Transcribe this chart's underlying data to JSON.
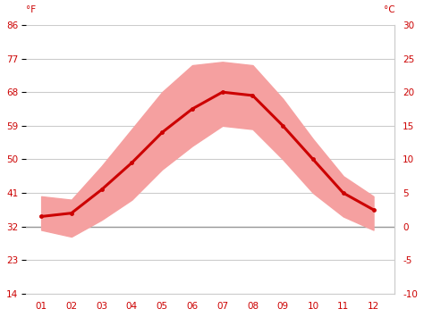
{
  "months": [
    1,
    2,
    3,
    4,
    5,
    6,
    7,
    8,
    9,
    10,
    11,
    12
  ],
  "month_labels": [
    "01",
    "02",
    "03",
    "04",
    "05",
    "06",
    "07",
    "08",
    "09",
    "10",
    "11",
    "12"
  ],
  "mean_temp_c": [
    1.5,
    2.0,
    5.5,
    9.5,
    14.0,
    17.5,
    20.0,
    19.5,
    15.0,
    10.0,
    5.0,
    2.5
  ],
  "max_temp_c": [
    4.5,
    4.0,
    9.0,
    14.5,
    20.0,
    24.0,
    24.5,
    24.0,
    19.0,
    13.0,
    7.5,
    4.5
  ],
  "min_temp_c": [
    -0.5,
    -1.5,
    1.0,
    4.0,
    8.5,
    12.0,
    15.0,
    14.5,
    10.0,
    5.0,
    1.5,
    -0.5
  ],
  "line_color": "#cc0000",
  "band_color": "#f5a0a0",
  "zero_line_color": "#999999",
  "grid_color": "#cccccc",
  "tick_color": "#cc0000",
  "spine_color": "#cccccc",
  "background_color": "#ffffff",
  "ylim_c": [
    -10,
    30
  ],
  "yticks_c": [
    -10,
    -5,
    0,
    5,
    10,
    15,
    20,
    25,
    30
  ],
  "yticks_f": [
    14,
    23,
    32,
    41,
    50,
    59,
    68,
    77,
    86
  ],
  "label_f": "°F",
  "label_c": "°C",
  "figsize": [
    4.74,
    3.55
  ],
  "dpi": 100
}
